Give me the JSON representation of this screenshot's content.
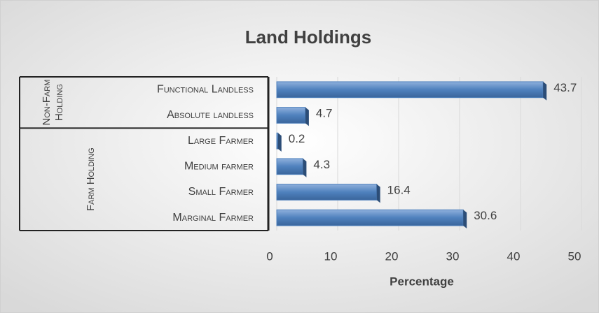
{
  "chart_data": {
    "type": "bar",
    "orientation": "horizontal",
    "title": "Land Holdings",
    "categories": [
      "Functional Landless",
      "Absolute landless",
      "Large Farmer",
      "Medium farmer",
      "Small Farmer",
      "Marginal Farmer"
    ],
    "groups": [
      {
        "name": "Non-Farm Holding",
        "categories": [
          0,
          1
        ]
      },
      {
        "name": "Farm Holding",
        "categories": [
          2,
          3,
          4,
          5
        ]
      }
    ],
    "values": [
      43.7,
      4.7,
      0.2,
      4.3,
      16.4,
      30.6
    ],
    "color": "#4f81bd",
    "xlabel": "Percentage",
    "xlim": [
      0,
      50
    ],
    "xticks": [
      0,
      10,
      20,
      30,
      40,
      50
    ],
    "grid": true
  }
}
